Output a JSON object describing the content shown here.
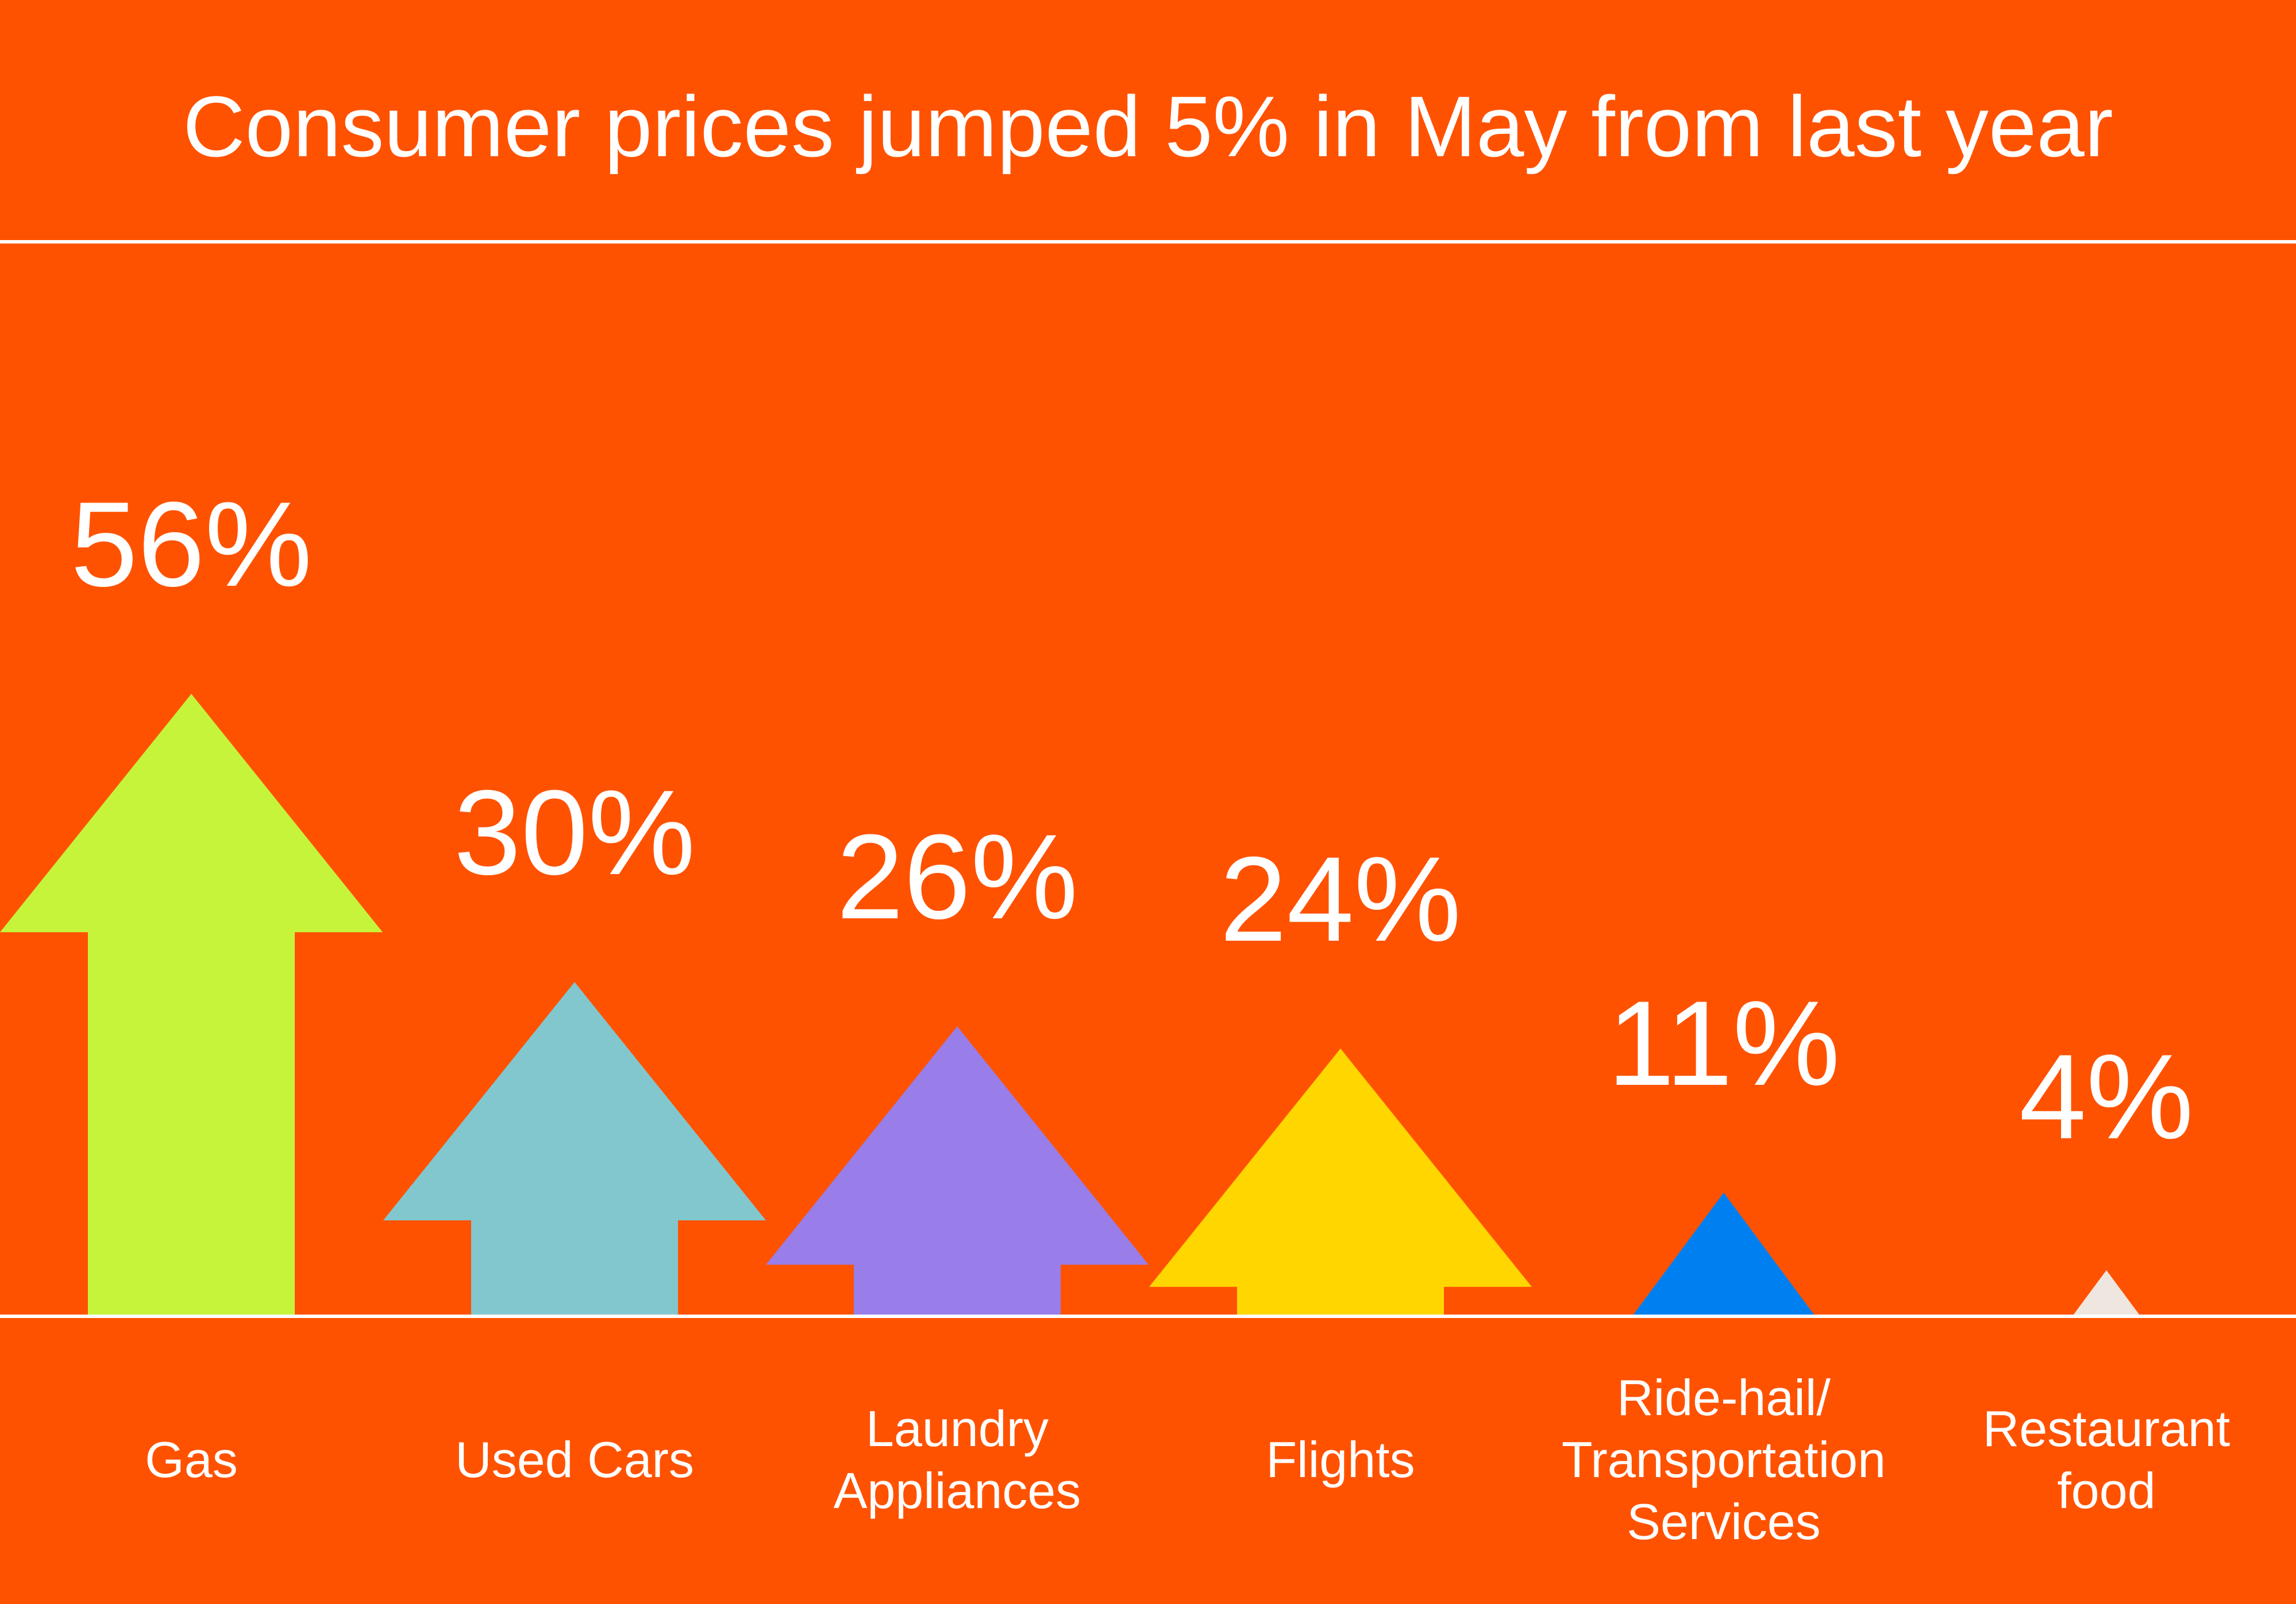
{
  "title": "Consumer prices jumped 5% in May from last year",
  "chart_data": {
    "type": "bar",
    "title": "Consumer prices jumped 5% in May from last year",
    "unit": "%",
    "categories": [
      "Gas",
      "Used Cars",
      "Laundry\nAppliances",
      "Flights",
      "Ride-hail/\nTransportation\nServices",
      "Restaurant\nfood"
    ],
    "values": [
      56,
      30,
      26,
      24,
      11,
      4
    ],
    "value_labels": [
      "56%",
      "30%",
      "26%",
      "24%",
      "11%",
      "4%"
    ],
    "colors": [
      "#c6f43b",
      "#82c7cd",
      "#997de8",
      "#ffd600",
      "#0080f0",
      "#efe6e0"
    ],
    "mark": "up-arrow",
    "background": "#ff5200"
  }
}
